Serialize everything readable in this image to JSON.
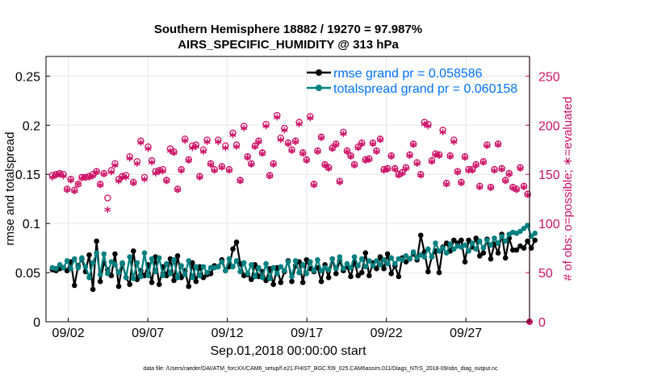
{
  "chart_data": {
    "type": "line",
    "title_line1": "Southern Hemisphere 18882 / 19270 = 97.987%",
    "title_line2": "AIRS_SPECIFIC_HUMIDITY @ 313 hPa",
    "ylabel_left": "rmse and totalspread",
    "ylabel_right": "# of obs: o=possible; ∗=evaluated",
    "xlabel": "Sep.01,2018 00:00:00 start",
    "footnote": "data file: /Users/raeder/DAI/ATM_forcXX/CAM6_setup/f.e21.FHIST_BGC.f09_025.CAM6assim.011/Diags_NTrS_2018-09/obs_diag_output.nc",
    "xlim": [
      0.6,
      31.0
    ],
    "ylim_left": [
      0,
      0.27
    ],
    "ylim_right": [
      0,
      270
    ],
    "x_ticks": [
      {
        "value": 2,
        "label": "09/02"
      },
      {
        "value": 7,
        "label": "09/07"
      },
      {
        "value": 12,
        "label": "09/12"
      },
      {
        "value": 17,
        "label": "09/17"
      },
      {
        "value": 22,
        "label": "09/22"
      },
      {
        "value": 27,
        "label": "09/27"
      }
    ],
    "y_ticks_left": [
      {
        "value": 0,
        "label": "0"
      },
      {
        "value": 0.05,
        "label": "0.05"
      },
      {
        "value": 0.1,
        "label": "0.1"
      },
      {
        "value": 0.15,
        "label": "0.15"
      },
      {
        "value": 0.2,
        "label": "0.2"
      },
      {
        "value": 0.25,
        "label": "0.25"
      }
    ],
    "y_ticks_right": [
      {
        "value": 0,
        "label": "0"
      },
      {
        "value": 50,
        "label": "50"
      },
      {
        "value": 100,
        "label": "100"
      },
      {
        "value": 150,
        "label": "150"
      },
      {
        "value": 200,
        "label": "200"
      },
      {
        "value": 250,
        "label": "250"
      }
    ],
    "grid": true,
    "legend_position": "top-right",
    "colors": {
      "rmse": "#000000",
      "spread": "#008080",
      "obs": "#cc1166",
      "legend_text": "#0072ff"
    },
    "series": [
      {
        "name": "rmse grand pr = 0.058586",
        "axis": "left",
        "values": [
          0.053,
          0.052,
          0.054,
          0.055,
          0.052,
          0.061,
          0.037,
          0.057,
          0.064,
          0.051,
          0.068,
          0.033,
          0.082,
          0.041,
          0.06,
          0.053,
          0.047,
          0.069,
          0.036,
          0.059,
          0.045,
          0.038,
          0.072,
          0.043,
          0.052,
          0.047,
          0.058,
          0.04,
          0.066,
          0.038,
          0.056,
          0.047,
          0.064,
          0.042,
          0.067,
          0.045,
          0.052,
          0.036,
          0.06,
          0.041,
          0.056,
          0.045,
          0.048,
          0.049,
          0.057,
          0.056,
          0.063,
          0.052,
          0.056,
          0.074,
          0.081,
          0.059,
          0.047,
          0.048,
          0.043,
          0.058,
          0.046,
          0.051,
          0.042,
          0.054,
          0.038,
          0.055,
          0.04,
          0.051,
          0.062,
          0.041,
          0.057,
          0.061,
          0.04,
          0.063,
          0.054,
          0.051,
          0.055,
          0.041,
          0.058,
          0.045,
          0.064,
          0.049,
          0.062,
          0.052,
          0.056,
          0.046,
          0.061,
          0.047,
          0.05,
          0.07,
          0.047,
          0.06,
          0.054,
          0.066,
          0.054,
          0.069,
          0.049,
          0.057,
          0.046,
          0.065,
          0.061,
          0.064,
          0.069,
          0.063,
          0.088,
          0.071,
          0.051,
          0.066,
          0.072,
          0.05,
          0.076,
          0.08,
          0.072,
          0.083,
          0.08,
          0.083,
          0.061,
          0.083,
          0.076,
          0.085,
          0.067,
          0.07,
          0.084,
          0.064,
          0.079,
          0.07,
          0.089,
          0.065,
          0.085,
          0.073,
          0.073,
          0.077,
          0.075,
          0.082,
          0.075,
          0.083
        ]
      },
      {
        "name": "totalspread grand pr = 0.060158",
        "axis": "left",
        "values": [
          0.055,
          0.054,
          0.058,
          0.055,
          0.062,
          0.054,
          0.064,
          0.055,
          0.065,
          0.056,
          0.045,
          0.06,
          0.07,
          0.048,
          0.069,
          0.049,
          0.061,
          0.058,
          0.05,
          0.06,
          0.045,
          0.066,
          0.044,
          0.06,
          0.046,
          0.07,
          0.047,
          0.064,
          0.051,
          0.065,
          0.047,
          0.059,
          0.049,
          0.063,
          0.045,
          0.057,
          0.048,
          0.062,
          0.045,
          0.056,
          0.047,
          0.056,
          0.05,
          0.055,
          0.055,
          0.056,
          0.061,
          0.052,
          0.064,
          0.056,
          0.062,
          0.051,
          0.06,
          0.049,
          0.058,
          0.046,
          0.055,
          0.045,
          0.059,
          0.044,
          0.055,
          0.049,
          0.056,
          0.052,
          0.061,
          0.046,
          0.062,
          0.05,
          0.058,
          0.049,
          0.061,
          0.052,
          0.063,
          0.052,
          0.055,
          0.053,
          0.064,
          0.054,
          0.066,
          0.054,
          0.059,
          0.055,
          0.066,
          0.057,
          0.064,
          0.056,
          0.062,
          0.057,
          0.062,
          0.058,
          0.063,
          0.059,
          0.065,
          0.059,
          0.064,
          0.063,
          0.067,
          0.064,
          0.071,
          0.065,
          0.068,
          0.066,
          0.074,
          0.066,
          0.08,
          0.072,
          0.075,
          0.07,
          0.079,
          0.074,
          0.077,
          0.076,
          0.078,
          0.072,
          0.08,
          0.074,
          0.082,
          0.075,
          0.083,
          0.078,
          0.085,
          0.08,
          0.087,
          0.082,
          0.089,
          0.091,
          0.09,
          0.092,
          0.095,
          0.098,
          0.087,
          0.09
        ]
      },
      {
        "name": "possible",
        "axis": "right",
        "values": [
          149,
          150,
          151,
          150,
          135,
          145,
          134,
          140,
          147,
          147,
          148,
          150,
          153,
          140,
          151,
          126,
          154,
          161,
          145,
          148,
          149,
          168,
          142,
          163,
          184,
          147,
          178,
          164,
          153,
          154,
          155,
          144,
          176,
          173,
          135,
          155,
          186,
          165,
          179,
          180,
          148,
          175,
          185,
          161,
          155,
          185,
          158,
          179,
          155,
          192,
          180,
          144,
          199,
          168,
          161,
          179,
          184,
          172,
          201,
          149,
          161,
          210,
          187,
          197,
          182,
          175,
          184,
          203,
          172,
          165,
          209,
          140,
          174,
          188,
          160,
          157,
          177,
          181,
          143,
          193,
          174,
          169,
          160,
          178,
          182,
          165,
          166,
          182,
          174,
          186,
          155,
          156,
          169,
          156,
          150,
          152,
          157,
          170,
          181,
          162,
          150,
          203,
          201,
          164,
          171,
          170,
          195,
          141,
          169,
          185,
          153,
          142,
          168,
          155,
          155,
          160,
          138,
          163,
          180,
          137,
          155,
          181,
          156,
          144,
          151,
          137,
          135,
          157,
          138,
          130
        ]
      },
      {
        "name": "evaluated",
        "axis": "right",
        "values": [
          145,
          147,
          148,
          146,
          132,
          142,
          131,
          138,
          144,
          145,
          145,
          146,
          150,
          137,
          148,
          112,
          150,
          157,
          141,
          145,
          145,
          164,
          139,
          159,
          180,
          143,
          174,
          160,
          149,
          151,
          151,
          141,
          172,
          170,
          132,
          152,
          182,
          162,
          175,
          176,
          145,
          171,
          181,
          158,
          152,
          181,
          155,
          175,
          152,
          188,
          176,
          141,
          195,
          165,
          158,
          176,
          181,
          169,
          197,
          146,
          158,
          206,
          183,
          193,
          179,
          172,
          181,
          199,
          169,
          162,
          205,
          137,
          171,
          185,
          157,
          154,
          174,
          178,
          140,
          189,
          171,
          166,
          157,
          175,
          179,
          162,
          163,
          179,
          171,
          183,
          152,
          153,
          166,
          153,
          147,
          149,
          154,
          167,
          178,
          159,
          147,
          199,
          197,
          161,
          168,
          167,
          191,
          138,
          166,
          181,
          150,
          139,
          165,
          152,
          152,
          157,
          135,
          160,
          177,
          134,
          152,
          178,
          153,
          141,
          148,
          134,
          132,
          154,
          135,
          127
        ]
      }
    ]
  }
}
